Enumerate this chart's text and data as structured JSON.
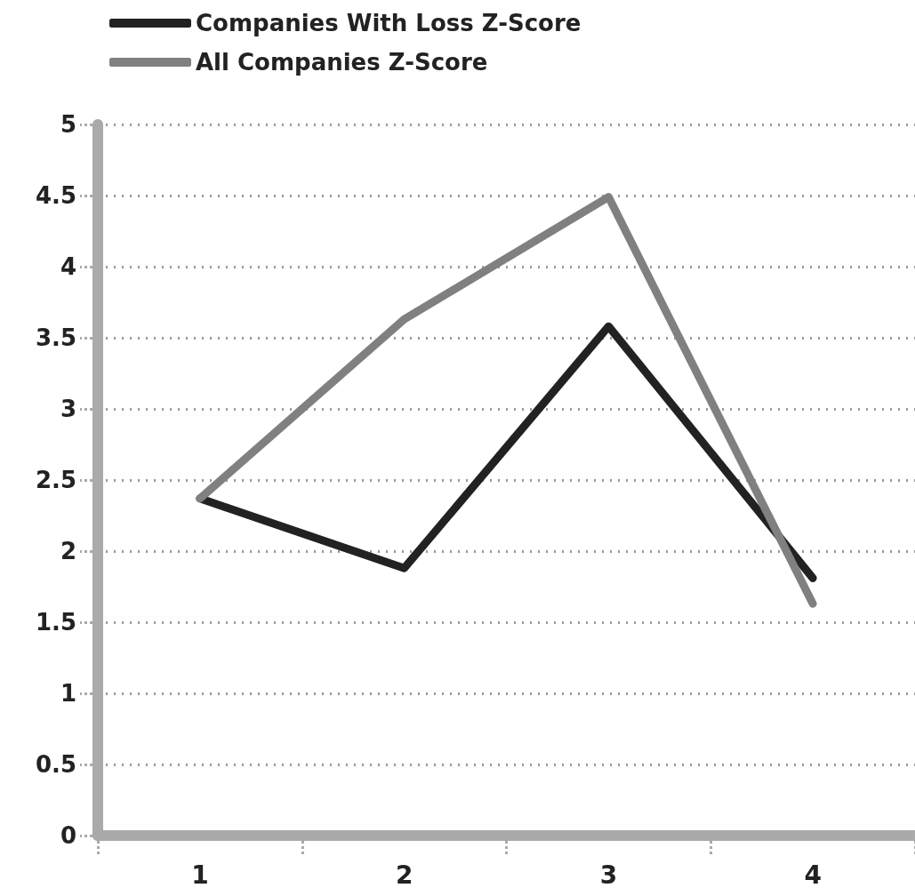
{
  "chart_data": {
    "type": "line",
    "categories": [
      "1",
      "2",
      "3",
      "4"
    ],
    "series": [
      {
        "name": "Companies With Loss Z-Score",
        "color": "#222222",
        "values": [
          2.37,
          1.88,
          3.58,
          1.81
        ]
      },
      {
        "name": "All Companies Z-Score",
        "color": "#808080",
        "values": [
          2.37,
          3.63,
          4.49,
          1.63
        ]
      }
    ],
    "ylim": [
      0,
      5
    ],
    "yticks": [
      0,
      0.5,
      1,
      1.5,
      2,
      2.5,
      3,
      3.5,
      4,
      4.5,
      5
    ],
    "grid": "y",
    "legend": "top left",
    "marker": "none",
    "line_style": "solid"
  }
}
